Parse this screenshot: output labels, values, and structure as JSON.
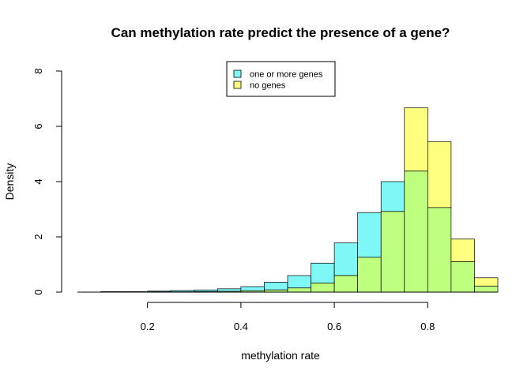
{
  "chart_data": {
    "type": "histogram",
    "title": "Can methylation rate predict the presence of a gene?",
    "xlabel": "methylation rate",
    "ylabel": "Density",
    "xlim": [
      0.05,
      0.95
    ],
    "ylim": [
      0,
      8
    ],
    "x_ticks": [
      "0.2",
      "0.4",
      "0.6",
      "0.8"
    ],
    "y_ticks": [
      "0",
      "2",
      "4",
      "6",
      "8"
    ],
    "bin_edges": [
      0.1,
      0.15,
      0.2,
      0.25,
      0.3,
      0.35,
      0.4,
      0.45,
      0.5,
      0.55,
      0.6,
      0.65,
      0.7,
      0.75,
      0.8,
      0.85,
      0.9,
      0.95
    ],
    "legend_position": "top-center",
    "series": [
      {
        "name": "one or more genes",
        "color": "#7ff7f7",
        "values": [
          0.02,
          0.02,
          0.04,
          0.06,
          0.08,
          0.12,
          0.2,
          0.36,
          0.6,
          1.05,
          1.78,
          2.88,
          4.0,
          4.38,
          3.06,
          1.1,
          0.22
        ]
      },
      {
        "name": "no genes",
        "color": "#ffff7f",
        "values": [
          0.0,
          0.0,
          0.01,
          0.01,
          0.02,
          0.03,
          0.05,
          0.08,
          0.15,
          0.33,
          0.6,
          1.26,
          2.92,
          6.67,
          5.45,
          1.92,
          0.52
        ]
      }
    ],
    "overlap_color": "#bfff7f"
  }
}
